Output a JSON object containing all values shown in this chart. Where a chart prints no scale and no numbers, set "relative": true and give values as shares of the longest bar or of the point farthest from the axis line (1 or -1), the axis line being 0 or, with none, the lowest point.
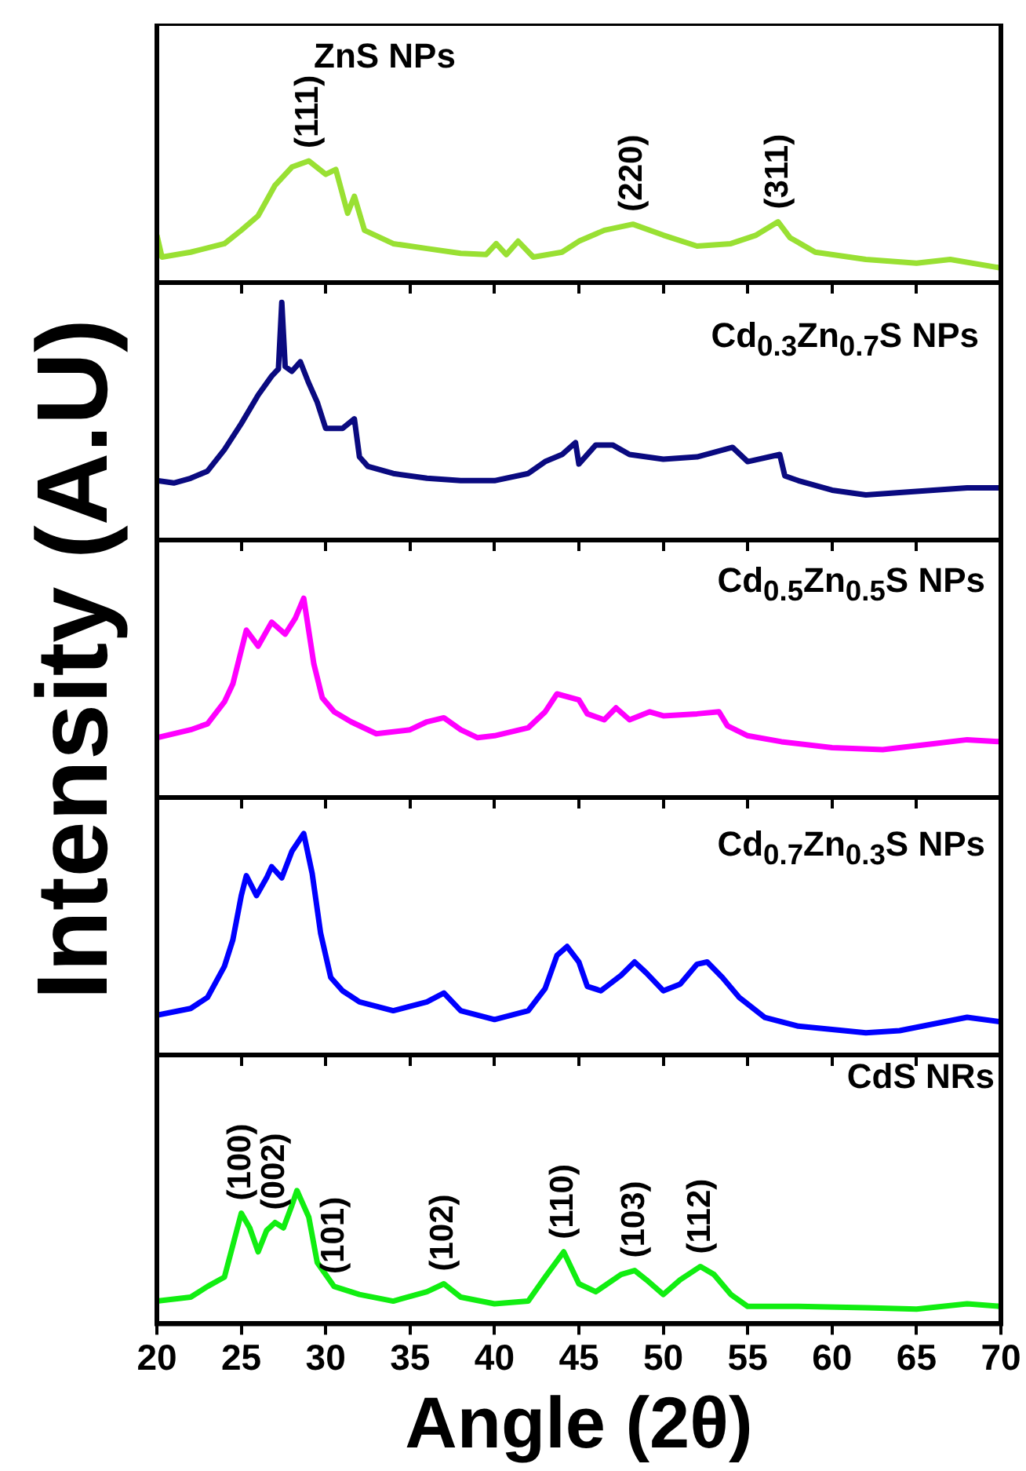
{
  "chart_data": [
    {
      "type": "line",
      "relative": true,
      "xlim": [
        20,
        70
      ],
      "xticks": [
        20,
        25,
        30,
        35,
        40,
        45,
        50,
        55,
        60,
        65,
        70
      ],
      "tick_labels": false,
      "x": [
        20,
        20.3,
        22,
        24,
        25,
        26,
        27,
        28,
        29,
        30,
        30.6,
        31.3,
        31.7,
        32.3,
        34,
        36,
        38,
        39.5,
        40.1,
        40.7,
        41.4,
        42.3,
        44,
        45,
        46.5,
        48.2,
        50,
        52,
        54,
        55.5,
        56.8,
        57.5,
        59,
        62,
        65,
        67,
        70
      ],
      "series": [
        {
          "color": "#99e033",
          "values": [
            0.39,
            0.21,
            0.25,
            0.32,
            0.43,
            0.55,
            0.8,
            0.95,
            1,
            0.89,
            0.93,
            0.57,
            0.71,
            0.43,
            0.32,
            0.28,
            0.24,
            0.23,
            0.32,
            0.23,
            0.34,
            0.21,
            0.25,
            0.34,
            0.43,
            0.48,
            0.39,
            0.3,
            0.32,
            0.39,
            0.5,
            0.37,
            0.25,
            0.19,
            0.16,
            0.19,
            0.12
          ]
        }
      ],
      "annotations": [
        "ZnS NPs",
        {
          "text": "(111)",
          "x": 29,
          "y": 1
        },
        {
          "text": "(220)",
          "x": 48.2,
          "y": 0.48
        },
        {
          "text": "(311)",
          "x": 56.8,
          "y": 0.5
        }
      ]
    },
    {
      "type": "line",
      "relative": true,
      "xlim": [
        20,
        70
      ],
      "xticks": [
        20,
        25,
        30,
        35,
        40,
        45,
        50,
        55,
        60,
        65,
        70
      ],
      "tick_labels": false,
      "x": [
        20,
        21,
        22,
        23,
        24,
        25,
        26,
        26.8,
        27.2,
        27.4,
        27.6,
        28,
        28.5,
        29,
        29.5,
        30,
        31,
        31.7,
        32,
        32.5,
        34,
        36,
        38,
        40,
        42,
        43,
        44,
        44.8,
        45,
        46,
        47,
        48,
        50,
        52,
        54.1,
        55,
        56.9,
        57.2,
        58,
        60,
        62,
        64,
        66,
        68,
        70
      ],
      "series": [
        {
          "color": "#0a0a80",
          "values": [
            0.25,
            0.24,
            0.26,
            0.29,
            0.38,
            0.49,
            0.61,
            0.69,
            0.72,
            1,
            0.73,
            0.71,
            0.75,
            0.66,
            0.58,
            0.47,
            0.47,
            0.51,
            0.35,
            0.31,
            0.28,
            0.26,
            0.25,
            0.25,
            0.28,
            0.33,
            0.36,
            0.41,
            0.32,
            0.4,
            0.4,
            0.36,
            0.34,
            0.35,
            0.39,
            0.33,
            0.36,
            0.27,
            0.25,
            0.21,
            0.19,
            0.2,
            0.21,
            0.22,
            0.22
          ]
        }
      ],
      "annotations": [
        "Cd$_{0.3}$Zn$_{0.7}$S NPs"
      ]
    },
    {
      "type": "line",
      "relative": true,
      "xlim": [
        20,
        70
      ],
      "xticks": [
        20,
        25,
        30,
        35,
        40,
        45,
        50,
        55,
        60,
        65,
        70
      ],
      "tick_labels": false,
      "ylabel": "Intensity (A.U)",
      "x": [
        20,
        22,
        23,
        24,
        24.5,
        25.3,
        26.0,
        26.8,
        27.6,
        28.2,
        28.7,
        29.3,
        29.8,
        30.5,
        31.5,
        33,
        35,
        36,
        37,
        38,
        39,
        40,
        42,
        43,
        43.7,
        45,
        45.5,
        46.5,
        47.2,
        48,
        49.2,
        50,
        52,
        53.3,
        53.8,
        55,
        57,
        60,
        63,
        66,
        68,
        70
      ],
      "series": [
        {
          "color": "#ff00ff",
          "values": [
            0.3,
            0.34,
            0.37,
            0.48,
            0.57,
            0.84,
            0.76,
            0.88,
            0.82,
            0.9,
            1,
            0.67,
            0.5,
            0.43,
            0.38,
            0.32,
            0.34,
            0.38,
            0.4,
            0.34,
            0.3,
            0.31,
            0.35,
            0.43,
            0.52,
            0.49,
            0.42,
            0.39,
            0.45,
            0.39,
            0.43,
            0.41,
            0.42,
            0.43,
            0.36,
            0.31,
            0.28,
            0.25,
            0.24,
            0.27,
            0.29,
            0.28
          ]
        }
      ],
      "annotations": [
        "Cd$_{0.5}$Zn$_{0.5}$S NPs"
      ]
    },
    {
      "type": "line",
      "relative": true,
      "xlim": [
        20,
        70
      ],
      "xticks": [
        20,
        25,
        30,
        35,
        40,
        45,
        50,
        55,
        60,
        65,
        70
      ],
      "tick_labels": false,
      "x": [
        20,
        22,
        23,
        24,
        24.5,
        25,
        25.3,
        25.9,
        26.5,
        26.8,
        27.4,
        28.0,
        28.7,
        29.2,
        29.7,
        30.3,
        31,
        32,
        34,
        36,
        37,
        38,
        40,
        42,
        43,
        43.7,
        44.3,
        45,
        45.5,
        46.3,
        47.5,
        48.3,
        49,
        50,
        51,
        52,
        52.6,
        53.5,
        54.5,
        56,
        58,
        62,
        64,
        66,
        68,
        70
      ],
      "series": [
        {
          "color": "#0000ff",
          "values": [
            0.18,
            0.21,
            0.26,
            0.4,
            0.52,
            0.72,
            0.81,
            0.72,
            0.8,
            0.85,
            0.8,
            0.92,
            1,
            0.82,
            0.55,
            0.35,
            0.29,
            0.24,
            0.2,
            0.24,
            0.28,
            0.2,
            0.16,
            0.2,
            0.3,
            0.45,
            0.49,
            0.42,
            0.31,
            0.29,
            0.36,
            0.42,
            0.37,
            0.29,
            0.32,
            0.41,
            0.42,
            0.35,
            0.26,
            0.17,
            0.13,
            0.1,
            0.11,
            0.14,
            0.17,
            0.15
          ]
        }
      ],
      "annotations": [
        "Cd$_{0.7}$Zn$_{0.3}$S NPs"
      ]
    },
    {
      "type": "line",
      "relative": true,
      "xlim": [
        20,
        70
      ],
      "xticks": [
        20,
        25,
        30,
        35,
        40,
        45,
        50,
        55,
        60,
        65,
        70
      ],
      "tick_labels": "x",
      "xlabel": "Angle (2θ)",
      "x": [
        20,
        22,
        23,
        24,
        24.5,
        25,
        25.5,
        26,
        26.5,
        27,
        27.5,
        28,
        28.3,
        29,
        29.5,
        30.5,
        32,
        34,
        36,
        37,
        38,
        40,
        42,
        43,
        44.1,
        45,
        46,
        47.5,
        48.3,
        49,
        50,
        51,
        52.2,
        53,
        54,
        55,
        58,
        62,
        65,
        68,
        70
      ],
      "series": [
        {
          "color": "#11ee11",
          "values": [
            0.17,
            0.2,
            0.28,
            0.35,
            0.59,
            0.83,
            0.72,
            0.54,
            0.7,
            0.76,
            0.72,
            0.89,
            1,
            0.8,
            0.46,
            0.28,
            0.22,
            0.17,
            0.24,
            0.3,
            0.2,
            0.15,
            0.17,
            0.35,
            0.54,
            0.3,
            0.24,
            0.37,
            0.4,
            0.33,
            0.22,
            0.33,
            0.43,
            0.37,
            0.22,
            0.13,
            0.13,
            0.12,
            0.11,
            0.15,
            0.13
          ]
        }
      ],
      "annotations": [
        "CdS NRs",
        {
          "text": "(100)",
          "x": 25,
          "y": 0.83
        },
        {
          "text": "(002)",
          "x": 27,
          "y": 0.76
        },
        {
          "text": "(101)",
          "x": 30.5,
          "y": 0.28
        },
        {
          "text": "(102)",
          "x": 37,
          "y": 0.3
        },
        {
          "text": "(110)",
          "x": 44.1,
          "y": 0.54
        },
        {
          "text": "(103)",
          "x": 48.3,
          "y": 0.4
        },
        {
          "text": "(112)",
          "x": 52.2,
          "y": 0.43
        }
      ]
    }
  ]
}
